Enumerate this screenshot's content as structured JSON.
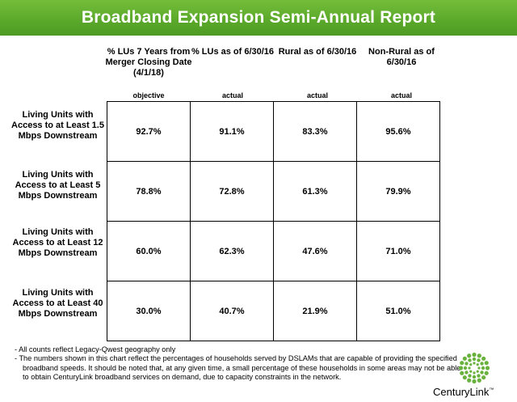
{
  "header": {
    "title": "Broadband Expansion Semi-Annual Report"
  },
  "columns": [
    {
      "heading": "% LUs 7 Years from Merger  Closing Date (4/1/18)",
      "sub": "objective"
    },
    {
      "heading": "% LUs as of 6/30/16",
      "sub": "actual"
    },
    {
      "heading": "Rural as of 6/30/16",
      "sub": "actual"
    },
    {
      "heading": "Non-Rural as of 6/30/16",
      "sub": "actual"
    }
  ],
  "rows": [
    {
      "label": "Living Units with Access to at Least 1.5 Mbps Downstream",
      "values": [
        "92.7%",
        "91.1%",
        "83.3%",
        "95.6%"
      ]
    },
    {
      "label": "Living Units with Access to at Least 5 Mbps Downstream",
      "values": [
        "78.8%",
        "72.8%",
        "61.3%",
        "79.9%"
      ]
    },
    {
      "label": "Living Units with Access to at Least 12 Mbps Downstream",
      "values": [
        "60.0%",
        "62.3%",
        "47.6%",
        "71.0%"
      ]
    },
    {
      "label": "Living Units with Access to at Least 40 Mbps Downstream",
      "values": [
        "30.0%",
        "40.7%",
        "21.9%",
        "51.0%"
      ]
    }
  ],
  "notes": [
    "- All counts reflect Legacy-Qwest geography only",
    "- The numbers shown in this chart reflect the percentages of households served by DSLAMs that are capable of providing the specified broadband speeds.  It should be noted that, at any given time, a small percentage of these households in some areas may not be able to obtain CenturyLink broadband services on demand, due to capacity constraints in the network."
  ],
  "logo": {
    "name": "CenturyLink",
    "trademark": "™",
    "accent_color": "#6ab23e"
  },
  "theme": {
    "banner_color": "#5aa82a"
  }
}
